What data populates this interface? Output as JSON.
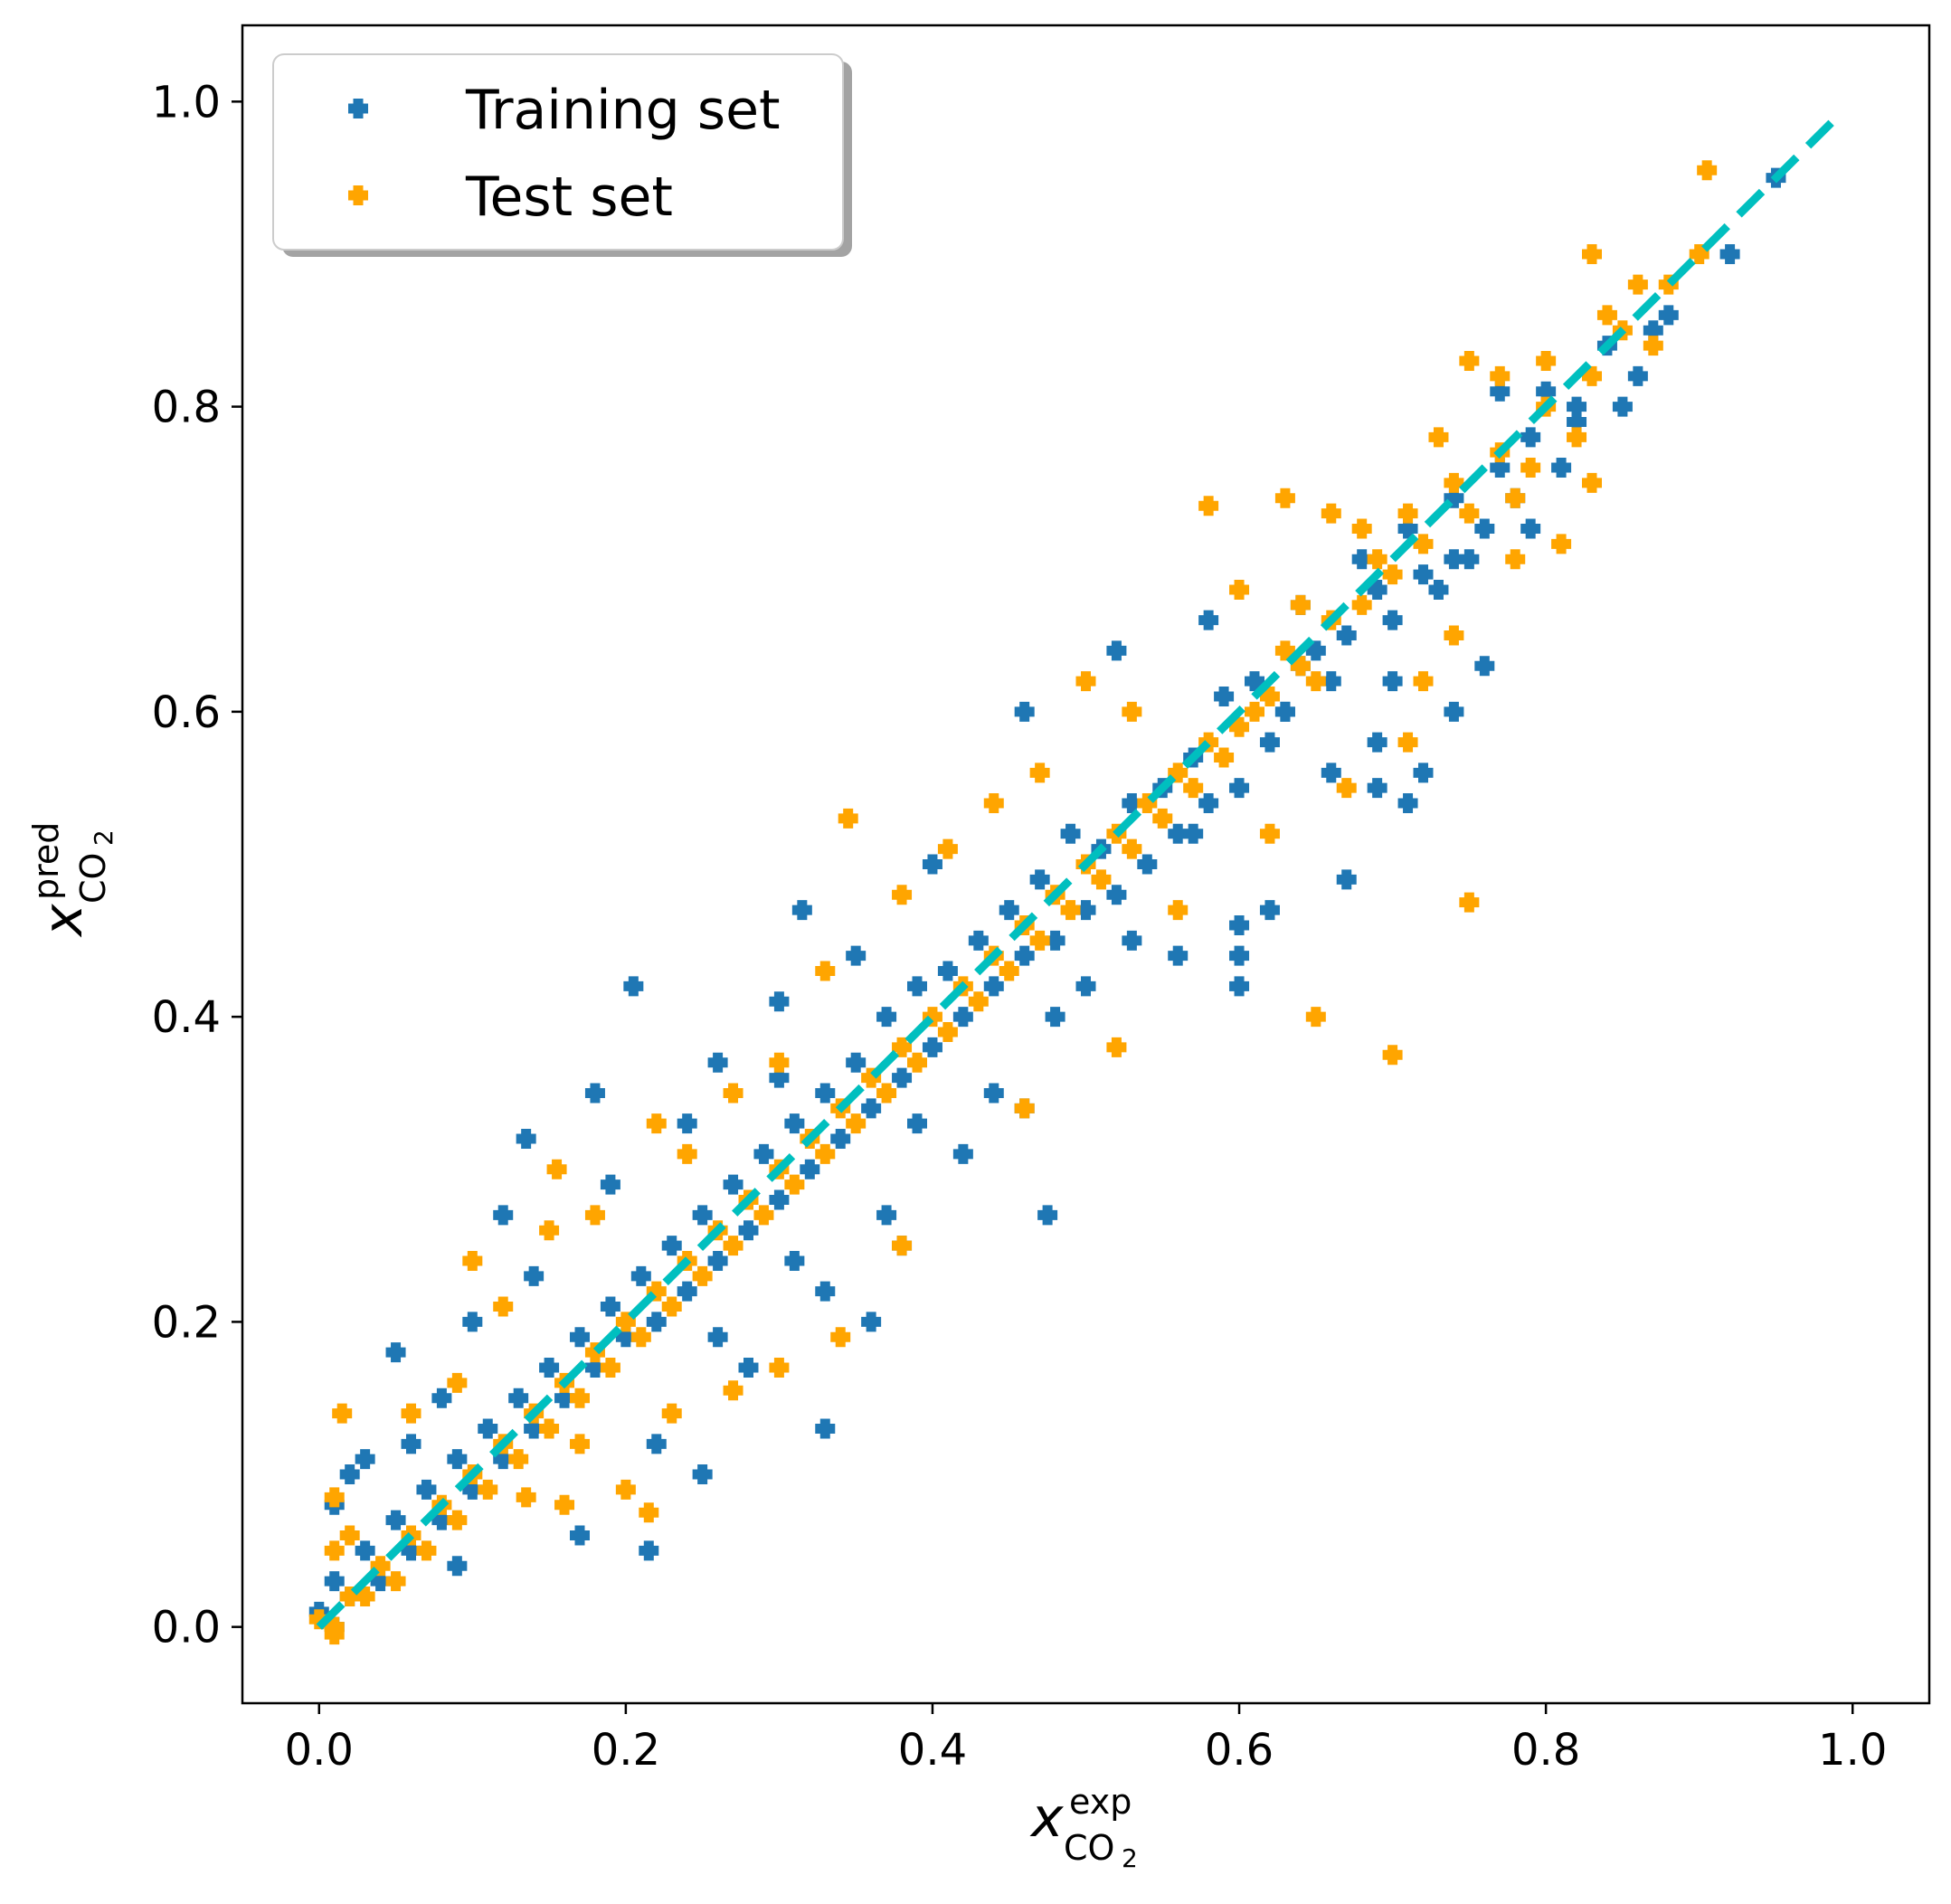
{
  "chart_data": {
    "type": "scatter",
    "xlim": [
      -0.05,
      1.05
    ],
    "ylim": [
      -0.05,
      1.05
    ],
    "x_ticks": [
      0.0,
      0.2,
      0.4,
      0.6,
      0.8,
      1.0
    ],
    "y_ticks": [
      0.0,
      0.2,
      0.4,
      0.6,
      0.8,
      1.0
    ],
    "x_tick_labels": [
      "0.0",
      "0.2",
      "0.4",
      "0.6",
      "0.8",
      "1.0"
    ],
    "y_tick_labels": [
      "0.0",
      "0.2",
      "0.4",
      "0.6",
      "0.8",
      "1.0"
    ],
    "xlabel": {
      "symbol": "x",
      "sup": "exp",
      "sub": "CO",
      "sub2": "2"
    },
    "ylabel": {
      "symbol": "x",
      "sup": "pred",
      "sub": "CO",
      "sub2": "2"
    },
    "grid": false,
    "legend_position": "top-left",
    "marker": "plus",
    "series": [
      {
        "name": "Training set",
        "color": "#1f77b4",
        "points": [
          [
            0.95,
            0.95
          ],
          [
            0.92,
            0.9
          ],
          [
            0.88,
            0.86
          ],
          [
            0.86,
            0.82
          ],
          [
            0.84,
            0.84
          ],
          [
            0.82,
            0.8
          ],
          [
            0.8,
            0.81
          ],
          [
            0.79,
            0.78
          ],
          [
            0.77,
            0.76
          ],
          [
            0.76,
            0.72
          ],
          [
            0.74,
            0.74
          ],
          [
            0.74,
            0.7
          ],
          [
            0.72,
            0.69
          ],
          [
            0.71,
            0.72
          ],
          [
            0.7,
            0.66
          ],
          [
            0.69,
            0.68
          ],
          [
            0.68,
            0.7
          ],
          [
            0.67,
            0.65
          ],
          [
            0.66,
            0.62
          ],
          [
            0.65,
            0.64
          ],
          [
            0.64,
            0.67
          ],
          [
            0.63,
            0.6
          ],
          [
            0.62,
            0.58
          ],
          [
            0.61,
            0.62
          ],
          [
            0.6,
            0.55
          ],
          [
            0.59,
            0.61
          ],
          [
            0.58,
            0.54
          ],
          [
            0.57,
            0.57
          ],
          [
            0.56,
            0.52
          ],
          [
            0.55,
            0.55
          ],
          [
            0.54,
            0.5
          ],
          [
            0.53,
            0.54
          ],
          [
            0.52,
            0.48
          ],
          [
            0.51,
            0.51
          ],
          [
            0.5,
            0.47
          ],
          [
            0.49,
            0.52
          ],
          [
            0.48,
            0.45
          ],
          [
            0.47,
            0.49
          ],
          [
            0.46,
            0.44
          ],
          [
            0.45,
            0.47
          ],
          [
            0.44,
            0.42
          ],
          [
            0.43,
            0.45
          ],
          [
            0.42,
            0.4
          ],
          [
            0.41,
            0.43
          ],
          [
            0.4,
            0.38
          ],
          [
            0.39,
            0.42
          ],
          [
            0.38,
            0.36
          ],
          [
            0.37,
            0.4
          ],
          [
            0.36,
            0.34
          ],
          [
            0.35,
            0.37
          ],
          [
            0.34,
            0.32
          ],
          [
            0.33,
            0.35
          ],
          [
            0.32,
            0.3
          ],
          [
            0.31,
            0.33
          ],
          [
            0.3,
            0.28
          ],
          [
            0.29,
            0.31
          ],
          [
            0.28,
            0.26
          ],
          [
            0.27,
            0.29
          ],
          [
            0.26,
            0.24
          ],
          [
            0.25,
            0.27
          ],
          [
            0.24,
            0.22
          ],
          [
            0.23,
            0.25
          ],
          [
            0.22,
            0.2
          ],
          [
            0.21,
            0.23
          ],
          [
            0.2,
            0.19
          ],
          [
            0.19,
            0.21
          ],
          [
            0.18,
            0.17
          ],
          [
            0.17,
            0.19
          ],
          [
            0.16,
            0.15
          ],
          [
            0.15,
            0.17
          ],
          [
            0.14,
            0.13
          ],
          [
            0.13,
            0.15
          ],
          [
            0.12,
            0.11
          ],
          [
            0.11,
            0.13
          ],
          [
            0.1,
            0.09
          ],
          [
            0.09,
            0.11
          ],
          [
            0.08,
            0.07
          ],
          [
            0.07,
            0.09
          ],
          [
            0.06,
            0.05
          ],
          [
            0.05,
            0.07
          ],
          [
            0.04,
            0.03
          ],
          [
            0.03,
            0.05
          ],
          [
            0.02,
            0.02
          ],
          [
            0.01,
            0.03
          ],
          [
            0.0,
            0.01
          ],
          [
            0.01,
            0.0
          ],
          [
            0.205,
            0.42
          ],
          [
            0.315,
            0.47
          ],
          [
            0.46,
            0.6
          ],
          [
            0.475,
            0.27
          ],
          [
            0.33,
            0.13
          ],
          [
            0.215,
            0.05
          ],
          [
            0.17,
            0.06
          ],
          [
            0.135,
            0.32
          ],
          [
            0.05,
            0.18
          ],
          [
            0.12,
            0.27
          ],
          [
            0.18,
            0.35
          ],
          [
            0.26,
            0.37
          ],
          [
            0.3,
            0.36
          ],
          [
            0.4,
            0.5
          ],
          [
            0.52,
            0.64
          ],
          [
            0.58,
            0.66
          ],
          [
            0.64,
            0.63
          ],
          [
            0.69,
            0.58
          ],
          [
            0.72,
            0.56
          ],
          [
            0.74,
            0.6
          ],
          [
            0.6,
            0.42
          ],
          [
            0.6,
            0.44
          ],
          [
            0.6,
            0.46
          ],
          [
            0.62,
            0.47
          ],
          [
            0.67,
            0.49
          ],
          [
            0.71,
            0.54
          ],
          [
            0.69,
            0.55
          ],
          [
            0.63,
            0.6
          ],
          [
            0.76,
            0.63
          ],
          [
            0.78,
            0.74
          ],
          [
            0.82,
            0.79
          ],
          [
            0.77,
            0.81
          ],
          [
            0.56,
            0.44
          ],
          [
            0.5,
            0.42
          ],
          [
            0.44,
            0.35
          ],
          [
            0.38,
            0.25
          ],
          [
            0.28,
            0.17
          ],
          [
            0.25,
            0.1
          ],
          [
            0.22,
            0.12
          ],
          [
            0.36,
            0.2
          ],
          [
            0.33,
            0.22
          ],
          [
            0.37,
            0.27
          ],
          [
            0.42,
            0.31
          ],
          [
            0.46,
            0.34
          ],
          [
            0.35,
            0.44
          ],
          [
            0.3,
            0.41
          ],
          [
            0.24,
            0.33
          ],
          [
            0.19,
            0.29
          ],
          [
            0.14,
            0.23
          ],
          [
            0.1,
            0.2
          ],
          [
            0.08,
            0.15
          ],
          [
            0.02,
            0.1
          ],
          [
            0.01,
            0.08
          ],
          [
            0.03,
            0.11
          ],
          [
            0.06,
            0.12
          ],
          [
            0.09,
            0.04
          ],
          [
            0.26,
            0.19
          ],
          [
            0.31,
            0.24
          ],
          [
            0.39,
            0.33
          ],
          [
            0.48,
            0.4
          ],
          [
            0.53,
            0.45
          ],
          [
            0.57,
            0.52
          ],
          [
            0.66,
            0.56
          ],
          [
            0.7,
            0.62
          ],
          [
            0.73,
            0.68
          ],
          [
            0.75,
            0.7
          ],
          [
            0.79,
            0.72
          ],
          [
            0.81,
            0.76
          ],
          [
            0.85,
            0.8
          ],
          [
            0.87,
            0.85
          ]
        ]
      },
      {
        "name": "Test set",
        "color": "#ffa500",
        "points": [
          [
            0.905,
            0.955
          ],
          [
            0.9,
            0.9
          ],
          [
            0.88,
            0.88
          ],
          [
            0.87,
            0.84
          ],
          [
            0.85,
            0.85
          ],
          [
            0.83,
            0.82
          ],
          [
            0.82,
            0.78
          ],
          [
            0.8,
            0.8
          ],
          [
            0.79,
            0.76
          ],
          [
            0.78,
            0.74
          ],
          [
            0.77,
            0.77
          ],
          [
            0.75,
            0.73
          ],
          [
            0.74,
            0.75
          ],
          [
            0.72,
            0.71
          ],
          [
            0.71,
            0.73
          ],
          [
            0.7,
            0.69
          ],
          [
            0.69,
            0.7
          ],
          [
            0.68,
            0.67
          ],
          [
            0.66,
            0.66
          ],
          [
            0.65,
            0.62
          ],
          [
            0.64,
            0.63
          ],
          [
            0.63,
            0.64
          ],
          [
            0.62,
            0.61
          ],
          [
            0.61,
            0.6
          ],
          [
            0.6,
            0.59
          ],
          [
            0.59,
            0.57
          ],
          [
            0.58,
            0.58
          ],
          [
            0.57,
            0.55
          ],
          [
            0.56,
            0.56
          ],
          [
            0.55,
            0.53
          ],
          [
            0.54,
            0.54
          ],
          [
            0.53,
            0.51
          ],
          [
            0.52,
            0.52
          ],
          [
            0.51,
            0.49
          ],
          [
            0.5,
            0.5
          ],
          [
            0.49,
            0.47
          ],
          [
            0.48,
            0.48
          ],
          [
            0.47,
            0.45
          ],
          [
            0.46,
            0.46
          ],
          [
            0.45,
            0.43
          ],
          [
            0.44,
            0.44
          ],
          [
            0.43,
            0.41
          ],
          [
            0.42,
            0.42
          ],
          [
            0.41,
            0.39
          ],
          [
            0.4,
            0.4
          ],
          [
            0.39,
            0.37
          ],
          [
            0.38,
            0.38
          ],
          [
            0.37,
            0.35
          ],
          [
            0.36,
            0.36
          ],
          [
            0.35,
            0.33
          ],
          [
            0.34,
            0.34
          ],
          [
            0.33,
            0.31
          ],
          [
            0.32,
            0.32
          ],
          [
            0.31,
            0.29
          ],
          [
            0.3,
            0.3
          ],
          [
            0.29,
            0.27
          ],
          [
            0.28,
            0.28
          ],
          [
            0.27,
            0.25
          ],
          [
            0.26,
            0.26
          ],
          [
            0.25,
            0.23
          ],
          [
            0.24,
            0.24
          ],
          [
            0.23,
            0.21
          ],
          [
            0.22,
            0.22
          ],
          [
            0.21,
            0.19
          ],
          [
            0.2,
            0.2
          ],
          [
            0.19,
            0.17
          ],
          [
            0.18,
            0.18
          ],
          [
            0.17,
            0.15
          ],
          [
            0.16,
            0.16
          ],
          [
            0.15,
            0.13
          ],
          [
            0.14,
            0.14
          ],
          [
            0.13,
            0.11
          ],
          [
            0.12,
            0.12
          ],
          [
            0.11,
            0.09
          ],
          [
            0.1,
            0.1
          ],
          [
            0.09,
            0.07
          ],
          [
            0.08,
            0.08
          ],
          [
            0.07,
            0.05
          ],
          [
            0.06,
            0.06
          ],
          [
            0.05,
            0.03
          ],
          [
            0.04,
            0.04
          ],
          [
            0.03,
            0.02
          ],
          [
            0.02,
            0.02
          ],
          [
            0.01,
            0.0
          ],
          [
            0.0,
            0.005
          ],
          [
            0.01,
            -0.005
          ],
          [
            0.345,
            0.53
          ],
          [
            0.75,
            0.475
          ],
          [
            0.65,
            0.4
          ],
          [
            0.7,
            0.375
          ],
          [
            0.58,
            0.735
          ],
          [
            0.63,
            0.74
          ],
          [
            0.66,
            0.73
          ],
          [
            0.5,
            0.62
          ],
          [
            0.71,
            0.58
          ],
          [
            0.74,
            0.65
          ],
          [
            0.78,
            0.7
          ],
          [
            0.81,
            0.71
          ],
          [
            0.83,
            0.75
          ],
          [
            0.75,
            0.83
          ],
          [
            0.83,
            0.9
          ],
          [
            0.86,
            0.88
          ],
          [
            0.1,
            0.24
          ],
          [
            0.015,
            0.14
          ],
          [
            0.01,
            0.085
          ],
          [
            0.01,
            0.05
          ],
          [
            0.155,
            0.3
          ],
          [
            0.135,
            0.085
          ],
          [
            0.2,
            0.09
          ],
          [
            0.215,
            0.075
          ],
          [
            0.27,
            0.155
          ],
          [
            0.3,
            0.17
          ],
          [
            0.34,
            0.19
          ],
          [
            0.38,
            0.25
          ],
          [
            0.46,
            0.34
          ],
          [
            0.52,
            0.38
          ],
          [
            0.56,
            0.47
          ],
          [
            0.62,
            0.52
          ],
          [
            0.67,
            0.55
          ],
          [
            0.72,
            0.62
          ],
          [
            0.44,
            0.54
          ],
          [
            0.38,
            0.48
          ],
          [
            0.3,
            0.37
          ],
          [
            0.24,
            0.31
          ],
          [
            0.18,
            0.27
          ],
          [
            0.12,
            0.21
          ],
          [
            0.06,
            0.14
          ],
          [
            0.02,
            0.06
          ],
          [
            0.09,
            0.16
          ],
          [
            0.15,
            0.26
          ],
          [
            0.22,
            0.33
          ],
          [
            0.27,
            0.35
          ],
          [
            0.33,
            0.43
          ],
          [
            0.41,
            0.51
          ],
          [
            0.47,
            0.56
          ],
          [
            0.53,
            0.6
          ],
          [
            0.6,
            0.68
          ],
          [
            0.64,
            0.67
          ],
          [
            0.68,
            0.72
          ],
          [
            0.73,
            0.78
          ],
          [
            0.77,
            0.82
          ],
          [
            0.8,
            0.83
          ],
          [
            0.84,
            0.86
          ],
          [
            0.16,
            0.08
          ],
          [
            0.17,
            0.12
          ],
          [
            0.23,
            0.14
          ]
        ]
      }
    ],
    "reference_line": {
      "style": "dashed",
      "color": "#00bfbf",
      "from": [
        0.0,
        0.0
      ],
      "to": [
        0.99,
        0.99
      ]
    }
  }
}
